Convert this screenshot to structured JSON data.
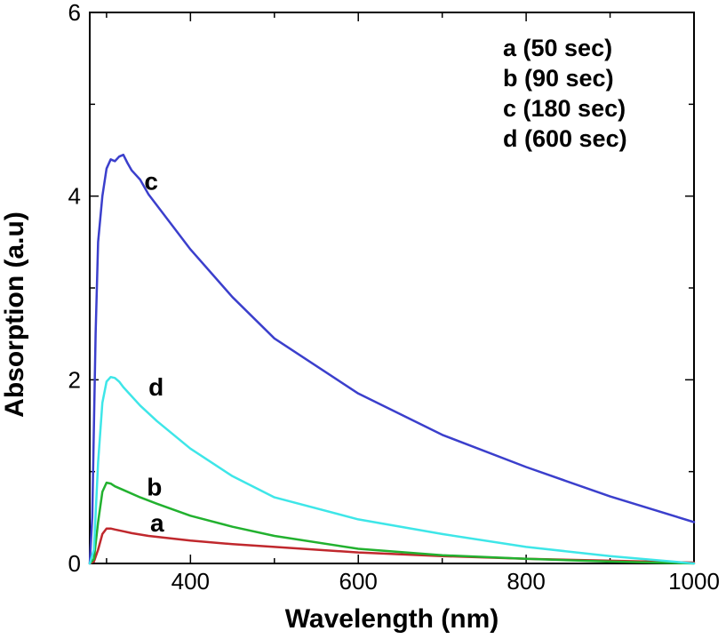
{
  "chart_data": {
    "type": "line",
    "xlabel": "Wavelength (nm)",
    "ylabel": "Absorption (a.u)",
    "xlim": [
      280,
      1000
    ],
    "ylim": [
      0,
      6
    ],
    "x_ticks": [
      400,
      600,
      800,
      1000
    ],
    "y_ticks": [
      0,
      2,
      4,
      6
    ],
    "grid": false,
    "legend_position": "top-right",
    "legend": [
      "a (50 sec)",
      "b (90 sec)",
      "c (180 sec)",
      "d (600 sec)"
    ],
    "series": [
      {
        "name": "a",
        "label": "a",
        "legend": "a (50 sec)",
        "color": "#c0282d",
        "x": [
          280,
          285,
          290,
          295,
          300,
          305,
          310,
          320,
          330,
          350,
          400,
          450,
          500,
          600,
          700,
          800,
          900,
          1000
        ],
        "y": [
          0,
          0.02,
          0.15,
          0.32,
          0.38,
          0.38,
          0.37,
          0.35,
          0.33,
          0.3,
          0.25,
          0.21,
          0.18,
          0.12,
          0.08,
          0.05,
          0.03,
          0.01
        ]
      },
      {
        "name": "b",
        "label": "b",
        "legend": "b (90 sec)",
        "color": "#22b12f",
        "x": [
          280,
          285,
          290,
          295,
          300,
          305,
          310,
          320,
          340,
          360,
          400,
          450,
          500,
          600,
          700,
          800,
          900,
          1000
        ],
        "y": [
          0,
          0.05,
          0.45,
          0.78,
          0.88,
          0.87,
          0.84,
          0.8,
          0.72,
          0.65,
          0.52,
          0.4,
          0.3,
          0.16,
          0.09,
          0.05,
          0.02,
          0.0
        ]
      },
      {
        "name": "c",
        "label": "c",
        "legend": "c (180 sec)",
        "color": "#3b3fcc",
        "x": [
          280,
          283,
          287,
          290,
          295,
          300,
          305,
          310,
          315,
          320,
          325,
          330,
          340,
          350,
          375,
          400,
          450,
          500,
          600,
          700,
          800,
          900,
          1000
        ],
        "y": [
          0,
          0.5,
          2.5,
          3.5,
          4.0,
          4.3,
          4.4,
          4.38,
          4.43,
          4.45,
          4.36,
          4.28,
          4.18,
          4.02,
          3.72,
          3.42,
          2.9,
          2.45,
          1.85,
          1.4,
          1.05,
          0.73,
          0.45
        ]
      },
      {
        "name": "d",
        "label": "d",
        "legend": "d (600 sec)",
        "color": "#3ee6e8",
        "x": [
          280,
          285,
          290,
          295,
          300,
          305,
          310,
          315,
          320,
          340,
          360,
          400,
          450,
          500,
          600,
          700,
          800,
          900,
          1000
        ],
        "y": [
          0,
          0.15,
          1.1,
          1.75,
          1.98,
          2.03,
          2.02,
          1.98,
          1.92,
          1.72,
          1.55,
          1.25,
          0.95,
          0.72,
          0.48,
          0.32,
          0.18,
          0.08,
          0.0
        ]
      }
    ],
    "curve_label_anchors": [
      {
        "label": "c",
        "x": 345,
        "y": 4.07
      },
      {
        "label": "d",
        "x": 350,
        "y": 1.83
      },
      {
        "label": "b",
        "x": 348,
        "y": 0.74
      },
      {
        "label": "a",
        "x": 352,
        "y": 0.35
      }
    ]
  }
}
